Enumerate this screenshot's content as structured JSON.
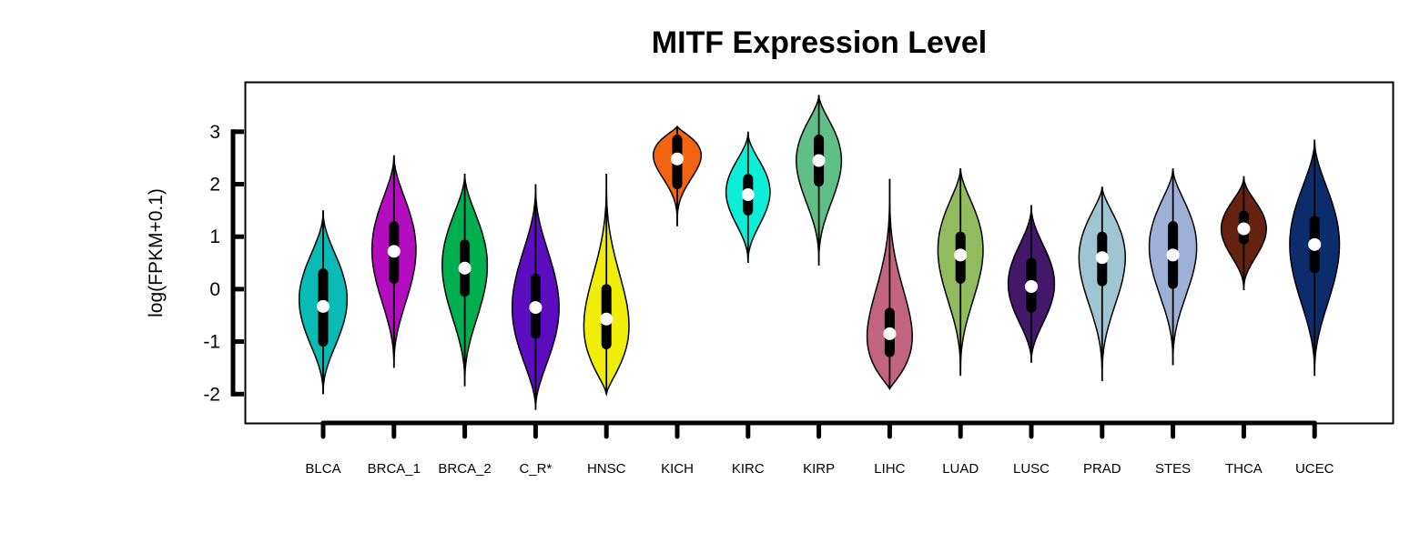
{
  "chart_data": {
    "type": "violin",
    "title": "MITF Expression Level",
    "xlabel": "",
    "ylabel": "log(FPKM+0.1)",
    "ylim": [
      -2.55,
      3.95
    ],
    "yticks": [
      -2,
      -1,
      0,
      1,
      2,
      3
    ],
    "ytick_labels": [
      "-2",
      "-1",
      "0",
      "1",
      "2",
      "3"
    ],
    "categories": [
      {
        "label": "BLCA",
        "color": "#0ABAB5",
        "min": -2.0,
        "max": 1.5,
        "q1": -1.0,
        "median": -0.33,
        "q3": 0.3,
        "peak": -0.2,
        "width": 0.85
      },
      {
        "label": "BRCA_1",
        "color": "#B30DBF",
        "min": -1.5,
        "max": 2.55,
        "q1": 0.2,
        "median": 0.72,
        "q3": 1.2,
        "peak": 0.75,
        "width": 0.78
      },
      {
        "label": "BRCA_2",
        "color": "#00B050",
        "min": -1.85,
        "max": 2.2,
        "q1": -0.05,
        "median": 0.4,
        "q3": 0.85,
        "peak": 0.45,
        "width": 0.8
      },
      {
        "label": "C_R*",
        "color": "#5B0DBF",
        "min": -2.3,
        "max": 2.0,
        "q1": -0.85,
        "median": -0.35,
        "q3": 0.2,
        "peak": -0.35,
        "width": 0.83
      },
      {
        "label": "HNSC",
        "color": "#EEEE08",
        "min": -2.0,
        "max": 2.2,
        "q1": -1.05,
        "median": -0.57,
        "q3": 0.0,
        "peak": -0.7,
        "width": 0.8
      },
      {
        "label": "KICH",
        "color": "#F26411",
        "min": 1.2,
        "max": 3.1,
        "q1": 2.0,
        "median": 2.48,
        "q3": 2.85,
        "peak": 2.55,
        "width": 0.85
      },
      {
        "label": "KIRC",
        "color": "#0DEED8",
        "min": 0.5,
        "max": 3.0,
        "q1": 1.5,
        "median": 1.8,
        "q3": 2.1,
        "peak": 1.85,
        "width": 0.78
      },
      {
        "label": "KIRP",
        "color": "#5FBF86",
        "min": 0.45,
        "max": 3.7,
        "q1": 2.05,
        "median": 2.45,
        "q3": 2.85,
        "peak": 2.45,
        "width": 0.8
      },
      {
        "label": "LIHC",
        "color": "#C26380",
        "min": -1.9,
        "max": 2.1,
        "q1": -1.2,
        "median": -0.85,
        "q3": -0.45,
        "peak": -0.9,
        "width": 0.8
      },
      {
        "label": "LUAD",
        "color": "#92BB5F",
        "min": -1.65,
        "max": 2.3,
        "q1": 0.2,
        "median": 0.65,
        "q3": 1.0,
        "peak": 0.75,
        "width": 0.8
      },
      {
        "label": "LUSC",
        "color": "#431769",
        "min": -1.4,
        "max": 1.6,
        "q1": -0.35,
        "median": 0.05,
        "q3": 0.5,
        "peak": 0.1,
        "width": 0.82
      },
      {
        "label": "PRAD",
        "color": "#9FC5D3",
        "min": -1.75,
        "max": 1.95,
        "q1": 0.15,
        "median": 0.6,
        "q3": 1.0,
        "peak": 0.6,
        "width": 0.82
      },
      {
        "label": "STES",
        "color": "#9EB0D6",
        "min": -1.45,
        "max": 2.3,
        "q1": 0.1,
        "median": 0.65,
        "q3": 1.2,
        "peak": 0.8,
        "width": 0.84
      },
      {
        "label": "THCA",
        "color": "#662210",
        "min": -0.02,
        "max": 2.15,
        "q1": 0.95,
        "median": 1.15,
        "q3": 1.4,
        "peak": 1.15,
        "width": 0.8
      },
      {
        "label": "UCEC",
        "color": "#0D2C6C",
        "min": -1.65,
        "max": 2.85,
        "q1": 0.4,
        "median": 0.85,
        "q3": 1.3,
        "peak": 0.85,
        "width": 0.88
      }
    ]
  }
}
